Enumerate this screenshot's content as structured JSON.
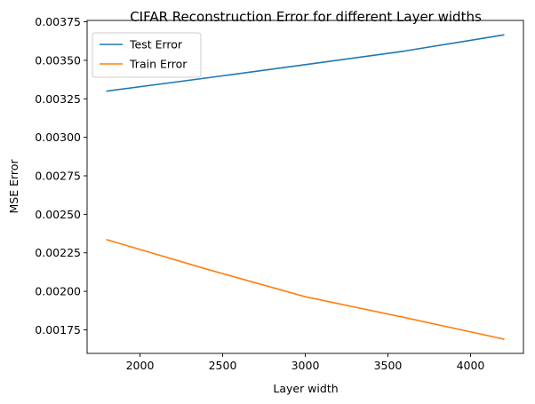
{
  "chart_data": {
    "type": "line",
    "title": "CIFAR Reconstruction Error for different Layer widths",
    "xlabel": "Layer width",
    "ylabel": "MSE Error",
    "x": [
      1800,
      2400,
      3000,
      3600,
      4200
    ],
    "series": [
      {
        "name": "Test Error",
        "color": "#1f77b4",
        "values": [
          0.0033,
          0.003385,
          0.003472,
          0.00356,
          0.003665
        ]
      },
      {
        "name": "Train Error",
        "color": "#ff7f0e",
        "values": [
          0.002335,
          0.002145,
          0.001965,
          0.00183,
          0.00169
        ]
      }
    ],
    "xlim": [
      1680,
      4320
    ],
    "ylim": [
      0.001597,
      0.003759
    ],
    "xticks": [
      2000,
      2500,
      3000,
      3500,
      4000
    ],
    "xtick_labels": [
      "2000",
      "2500",
      "3000",
      "3500",
      "4000"
    ],
    "yticks": [
      0.00175,
      0.002,
      0.00225,
      0.0025,
      0.00275,
      0.003,
      0.00325,
      0.0035,
      0.00375
    ],
    "ytick_labels": [
      "0.00175",
      "0.00200",
      "0.00225",
      "0.00250",
      "0.00275",
      "0.00300",
      "0.00325",
      "0.00350",
      "0.00375"
    ],
    "grid": false,
    "legend_position": "top-left"
  }
}
